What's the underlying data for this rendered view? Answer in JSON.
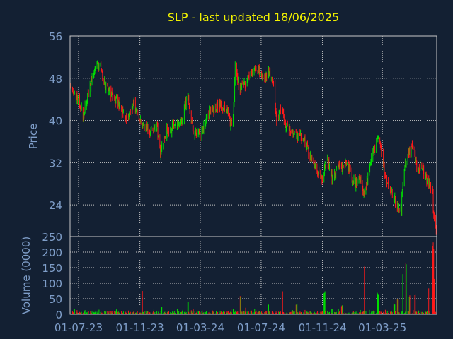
{
  "chart_data": {
    "type": "candlestick",
    "title": "SLP - last updated 18/06/2025",
    "ylabel": "Price",
    "volume_label": "Volume (0000)",
    "colors": {
      "up": "#00e000",
      "down": "#ff1a1a",
      "grid": "#c8c8c8",
      "text": "#7f9ec9",
      "title": "#f2f200",
      "background": "#132033"
    },
    "x_tick_labels": [
      "01-07-23",
      "01-11-23",
      "01-03-24",
      "01-07-24",
      "01-11-24",
      "01-03-25"
    ],
    "x_range": [
      "2023-06-14",
      "2025-06-18"
    ],
    "price_ylim": [
      18,
      56
    ],
    "price_ticks": [
      56,
      48,
      40,
      32,
      24
    ],
    "volume_ylim": [
      0,
      250
    ],
    "volume_ticks": [
      250,
      200,
      150,
      100,
      50,
      0
    ],
    "grid": true,
    "price_path": [
      [
        "2023-06-14",
        47
      ],
      [
        "2023-06-24",
        45
      ],
      [
        "2023-07-04",
        43
      ],
      [
        "2023-07-10",
        41
      ],
      [
        "2023-07-20",
        45
      ],
      [
        "2023-08-01",
        49
      ],
      [
        "2023-08-12",
        51
      ],
      [
        "2023-08-22",
        47
      ],
      [
        "2023-09-05",
        45
      ],
      [
        "2023-09-20",
        43
      ],
      [
        "2023-10-05",
        40
      ],
      [
        "2023-10-20",
        43
      ],
      [
        "2023-11-05",
        39
      ],
      [
        "2023-11-20",
        38
      ],
      [
        "2023-12-05",
        39
      ],
      [
        "2023-12-12",
        34
      ],
      [
        "2023-12-25",
        38
      ],
      [
        "2024-01-10",
        39
      ],
      [
        "2024-01-25",
        40
      ],
      [
        "2024-02-05",
        45
      ],
      [
        "2024-02-15",
        38
      ],
      [
        "2024-03-01",
        37
      ],
      [
        "2024-03-15",
        41
      ],
      [
        "2024-03-25",
        42
      ],
      [
        "2024-04-10",
        43
      ],
      [
        "2024-04-25",
        42
      ],
      [
        "2024-05-05",
        38
      ],
      [
        "2024-05-10",
        50
      ],
      [
        "2024-05-20",
        46
      ],
      [
        "2024-06-01",
        47
      ],
      [
        "2024-06-10",
        49
      ],
      [
        "2024-06-20",
        50
      ],
      [
        "2024-07-05",
        48
      ],
      [
        "2024-07-15",
        49
      ],
      [
        "2024-07-25",
        47
      ],
      [
        "2024-08-01",
        40
      ],
      [
        "2024-08-10",
        42
      ],
      [
        "2024-08-20",
        39
      ],
      [
        "2024-09-05",
        37
      ],
      [
        "2024-09-20",
        37
      ],
      [
        "2024-10-05",
        34
      ],
      [
        "2024-10-20",
        31
      ],
      [
        "2024-11-01",
        29
      ],
      [
        "2024-11-10",
        33
      ],
      [
        "2024-11-20",
        29
      ],
      [
        "2024-12-05",
        31
      ],
      [
        "2024-12-20",
        32
      ],
      [
        "2025-01-05",
        28
      ],
      [
        "2025-01-15",
        29
      ],
      [
        "2025-01-25",
        26
      ],
      [
        "2025-02-05",
        32
      ],
      [
        "2025-02-15",
        35
      ],
      [
        "2025-02-22",
        37
      ],
      [
        "2025-03-01",
        33
      ],
      [
        "2025-03-10",
        28
      ],
      [
        "2025-03-20",
        26
      ],
      [
        "2025-04-01",
        24
      ],
      [
        "2025-04-08",
        23.5
      ],
      [
        "2025-04-12",
        30
      ],
      [
        "2025-04-22",
        34
      ],
      [
        "2025-05-01",
        35
      ],
      [
        "2025-05-10",
        31
      ],
      [
        "2025-05-20",
        31
      ],
      [
        "2025-05-25",
        30
      ],
      [
        "2025-06-01",
        28
      ],
      [
        "2025-06-10",
        27
      ],
      [
        "2025-06-11",
        23
      ],
      [
        "2025-06-18",
        19
      ]
    ],
    "volume_spikes": [
      [
        "2023-11-05",
        75
      ],
      [
        "2023-12-15",
        25
      ],
      [
        "2024-02-05",
        45
      ],
      [
        "2024-05-20",
        60
      ],
      [
        "2024-07-15",
        35
      ],
      [
        "2024-08-12",
        80
      ],
      [
        "2024-09-10",
        35
      ],
      [
        "2024-11-05",
        75
      ],
      [
        "2024-12-10",
        30
      ],
      [
        "2025-01-25",
        155
      ],
      [
        "2025-02-20",
        70
      ],
      [
        "2025-03-25",
        35
      ],
      [
        "2025-04-01",
        50
      ],
      [
        "2025-04-12",
        130
      ],
      [
        "2025-04-18",
        175
      ],
      [
        "2025-04-25",
        65
      ],
      [
        "2025-05-05",
        70
      ],
      [
        "2025-06-01",
        90
      ],
      [
        "2025-06-11",
        232
      ],
      [
        "2025-06-14",
        120
      ]
    ]
  }
}
